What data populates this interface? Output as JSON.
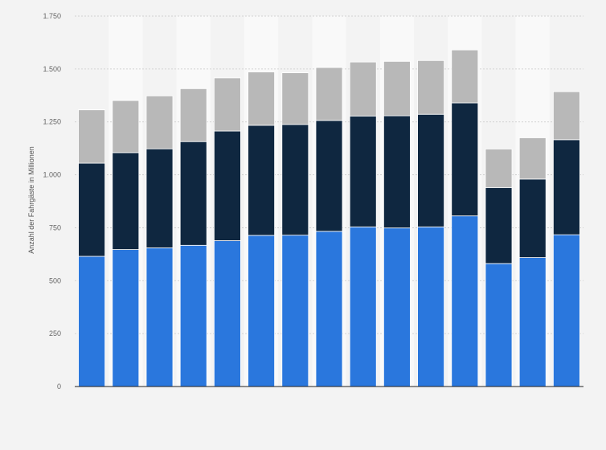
{
  "chart_data": {
    "type": "bar",
    "stacked": true,
    "title": "",
    "xlabel": "",
    "ylabel": "Anzahl der Fahrgäste in Millionen",
    "ylim": [
      0,
      1750
    ],
    "yticks": [
      0,
      250,
      500,
      750,
      1000,
      1250,
      1500,
      1750
    ],
    "ytick_labels": [
      "0",
      "250",
      "500",
      "750",
      "1.000",
      "1.250",
      "1.500",
      "1.750"
    ],
    "grid": true,
    "legend": "none",
    "categories": [
      "",
      "",
      "",
      "",
      "",
      "",
      "",
      "",
      "",
      "",
      "",
      "",
      "",
      "",
      ""
    ],
    "series": [
      {
        "color": "#2a77dd",
        "values": [
          615,
          647,
          655,
          667,
          689,
          714,
          715,
          733,
          754,
          749,
          754,
          806,
          581,
          609,
          717
        ]
      },
      {
        "color": "#0f2740",
        "values": [
          440,
          458,
          468,
          490,
          518,
          520,
          523,
          524,
          524,
          530,
          532,
          534,
          359,
          371,
          449
        ]
      },
      {
        "color": "#b8b8b8",
        "values": [
          252,
          246,
          250,
          250,
          251,
          252,
          244,
          250,
          255,
          257,
          254,
          250,
          182,
          195,
          227
        ]
      }
    ]
  }
}
